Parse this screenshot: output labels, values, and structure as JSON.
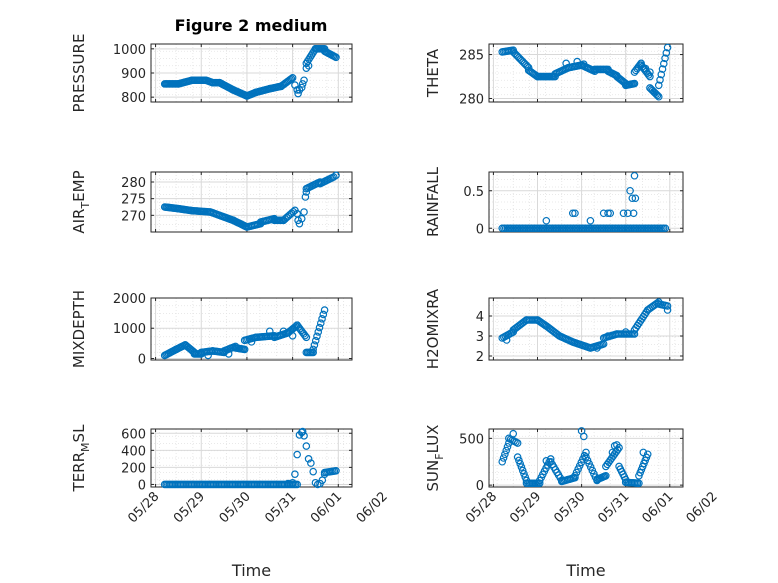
{
  "figure_title": "Figure 2 medium",
  "colors": {
    "marker": "#0072BD",
    "axis": "#262626",
    "grid": "#d9d9d9"
  },
  "chart_data": [
    {
      "type": "scatter",
      "ylabel": "PRESSURE",
      "ylim": [
        780,
        1020
      ],
      "yticks": [
        800,
        900,
        1000
      ],
      "ytick_labels": [
        "800",
        "900",
        "1000"
      ],
      "xlim": [
        -0.1,
        4.3
      ],
      "xticks": [
        0,
        1,
        2,
        3,
        4,
        5
      ],
      "xtick_labels": [],
      "segments": [
        {
          "x0": 0.2,
          "x1": 0.5,
          "y0": 855,
          "y1": 855,
          "n": 14
        },
        {
          "x0": 0.5,
          "x1": 0.8,
          "y0": 855,
          "y1": 870,
          "n": 12
        },
        {
          "x0": 0.8,
          "x1": 1.1,
          "y0": 870,
          "y1": 870,
          "n": 12
        },
        {
          "x0": 1.1,
          "x1": 1.25,
          "y0": 870,
          "y1": 860,
          "n": 6
        },
        {
          "x0": 1.25,
          "x1": 1.4,
          "y0": 860,
          "y1": 860,
          "n": 6
        },
        {
          "x0": 1.4,
          "x1": 1.7,
          "y0": 860,
          "y1": 830,
          "n": 12
        },
        {
          "x0": 1.7,
          "x1": 2.0,
          "y0": 830,
          "y1": 805,
          "n": 12
        },
        {
          "x0": 2.0,
          "x1": 2.2,
          "y0": 805,
          "y1": 820,
          "n": 8
        },
        {
          "x0": 2.2,
          "x1": 2.5,
          "y0": 820,
          "y1": 835,
          "n": 12
        },
        {
          "x0": 2.5,
          "x1": 2.75,
          "y0": 835,
          "y1": 845,
          "n": 10
        },
        {
          "x0": 2.75,
          "x1": 3.0,
          "y0": 845,
          "y1": 880,
          "n": 10
        },
        {
          "x0": 3.3,
          "x1": 3.5,
          "y0": 940,
          "y1": 1000,
          "n": 8
        },
        {
          "x0": 3.5,
          "x1": 3.7,
          "y0": 1000,
          "y1": 1000,
          "n": 8
        },
        {
          "x0": 3.7,
          "x1": 3.95,
          "y0": 990,
          "y1": 965,
          "n": 10
        }
      ],
      "points": [
        [
          3.05,
          850
        ],
        [
          3.1,
          830
        ],
        [
          3.12,
          815
        ],
        [
          3.15,
          830
        ],
        [
          3.2,
          840
        ],
        [
          3.22,
          855
        ],
        [
          3.25,
          870
        ],
        [
          3.3,
          920
        ],
        [
          3.35,
          930
        ]
      ]
    },
    {
      "type": "scatter",
      "ylabel": "THETA",
      "ylim": [
        279.6,
        286.2
      ],
      "yticks": [
        280,
        285
      ],
      "ytick_labels": [
        "280",
        "285"
      ],
      "xlim": [
        -0.1,
        4.3
      ],
      "xticks": [
        0,
        1,
        2,
        3,
        4,
        5
      ],
      "xtick_labels": [],
      "segments": [
        {
          "x0": 0.2,
          "x1": 0.45,
          "y0": 285.3,
          "y1": 285.5,
          "n": 8
        },
        {
          "x0": 0.45,
          "x1": 0.8,
          "y0": 285.3,
          "y1": 283.5,
          "n": 12
        },
        {
          "x0": 0.8,
          "x1": 1.0,
          "y0": 283.2,
          "y1": 282.5,
          "n": 8
        },
        {
          "x0": 1.0,
          "x1": 1.4,
          "y0": 282.5,
          "y1": 282.5,
          "n": 14
        },
        {
          "x0": 1.4,
          "x1": 1.7,
          "y0": 282.8,
          "y1": 283.5,
          "n": 10
        },
        {
          "x0": 1.7,
          "x1": 2.0,
          "y0": 283.5,
          "y1": 283.8,
          "n": 10
        },
        {
          "x0": 2.0,
          "x1": 2.3,
          "y0": 283.8,
          "y1": 283.1,
          "n": 10
        },
        {
          "x0": 2.3,
          "x1": 2.6,
          "y0": 283.3,
          "y1": 283.3,
          "n": 10
        },
        {
          "x0": 2.6,
          "x1": 2.8,
          "y0": 283.1,
          "y1": 282.6,
          "n": 8
        },
        {
          "x0": 2.8,
          "x1": 3.0,
          "y0": 282.5,
          "y1": 281.7,
          "n": 8
        },
        {
          "x0": 3.0,
          "x1": 3.2,
          "y0": 281.5,
          "y1": 281.7,
          "n": 8
        },
        {
          "x0": 3.2,
          "x1": 3.35,
          "y0": 283.0,
          "y1": 284.0,
          "n": 6
        },
        {
          "x0": 3.35,
          "x1": 3.55,
          "y0": 283.8,
          "y1": 282.5,
          "n": 8
        },
        {
          "x0": 3.55,
          "x1": 3.75,
          "y0": 281.2,
          "y1": 280.2,
          "n": 8
        },
        {
          "x0": 3.75,
          "x1": 3.95,
          "y0": 281.5,
          "y1": 285.8,
          "n": 8
        }
      ],
      "points": [
        [
          1.65,
          284.0
        ],
        [
          1.9,
          284.2
        ],
        [
          2.05,
          283.9
        ],
        [
          3.45,
          283.4
        ],
        [
          3.55,
          283.0
        ]
      ]
    },
    {
      "type": "scatter",
      "ylabel": "AIR_TEMP",
      "ylabel_parts": [
        "AIR",
        "T",
        "EMP"
      ],
      "ylim": [
        265,
        283
      ],
      "yticks": [
        270,
        275,
        280
      ],
      "ytick_labels": [
        "270",
        "275",
        "280"
      ],
      "xlim": [
        -0.1,
        4.3
      ],
      "xticks": [
        0,
        1,
        2,
        3,
        4,
        5
      ],
      "xtick_labels": [],
      "segments": [
        {
          "x0": 0.2,
          "x1": 0.5,
          "y0": 272.5,
          "y1": 272.0,
          "n": 12
        },
        {
          "x0": 0.5,
          "x1": 0.8,
          "y0": 272.0,
          "y1": 271.4,
          "n": 12
        },
        {
          "x0": 0.8,
          "x1": 1.2,
          "y0": 271.4,
          "y1": 271.0,
          "n": 14
        },
        {
          "x0": 1.2,
          "x1": 1.5,
          "y0": 271.0,
          "y1": 269.5,
          "n": 10
        },
        {
          "x0": 1.5,
          "x1": 1.7,
          "y0": 269.5,
          "y1": 268.5,
          "n": 8
        },
        {
          "x0": 1.7,
          "x1": 2.0,
          "y0": 268.5,
          "y1": 266.5,
          "n": 12
        },
        {
          "x0": 2.0,
          "x1": 2.3,
          "y0": 266.5,
          "y1": 267.5,
          "n": 10
        },
        {
          "x0": 2.3,
          "x1": 2.6,
          "y0": 268.0,
          "y1": 269.0,
          "n": 10
        },
        {
          "x0": 2.6,
          "x1": 2.8,
          "y0": 268.5,
          "y1": 268.5,
          "n": 8
        },
        {
          "x0": 2.8,
          "x1": 3.05,
          "y0": 268.5,
          "y1": 271.5,
          "n": 8
        },
        {
          "x0": 3.3,
          "x1": 3.6,
          "y0": 278.0,
          "y1": 280.0,
          "n": 10
        },
        {
          "x0": 3.6,
          "x1": 3.9,
          "y0": 279.5,
          "y1": 281.5,
          "n": 10
        }
      ],
      "points": [
        [
          3.1,
          270.5
        ],
        [
          3.12,
          268.5
        ],
        [
          3.15,
          267.5
        ],
        [
          3.2,
          269.0
        ],
        [
          3.25,
          271.0
        ],
        [
          3.28,
          275.5
        ],
        [
          3.3,
          277.0
        ],
        [
          3.95,
          282.0
        ]
      ]
    },
    {
      "type": "scatter",
      "ylabel": "RAINFALL",
      "ylim": [
        -0.05,
        0.75
      ],
      "yticks": [
        0,
        0.5
      ],
      "ytick_labels": [
        "0",
        "0.5"
      ],
      "xlim": [
        -0.1,
        4.3
      ],
      "xticks": [
        0,
        1,
        2,
        3,
        4,
        5
      ],
      "xtick_labels": [],
      "segments": [
        {
          "x0": 0.2,
          "x1": 3.9,
          "y0": 0,
          "y1": 0,
          "n": 95
        }
      ],
      "points": [
        [
          1.2,
          0.1
        ],
        [
          1.8,
          0.2
        ],
        [
          1.85,
          0.2
        ],
        [
          2.2,
          0.1
        ],
        [
          2.5,
          0.2
        ],
        [
          2.6,
          0.2
        ],
        [
          2.65,
          0.2
        ],
        [
          2.95,
          0.2
        ],
        [
          3.05,
          0.2
        ],
        [
          3.1,
          0.5
        ],
        [
          3.15,
          0.4
        ],
        [
          3.18,
          0.2
        ],
        [
          3.2,
          0.7
        ],
        [
          3.22,
          0.4
        ]
      ]
    },
    {
      "type": "scatter",
      "ylabel": "MIXDEPTH",
      "ylim": [
        -50,
        2000
      ],
      "yticks": [
        0,
        1000,
        2000
      ],
      "ytick_labels": [
        "0",
        "1000",
        "2000"
      ],
      "xlim": [
        -0.1,
        4.3
      ],
      "xticks": [
        0,
        1,
        2,
        3,
        4,
        5
      ],
      "xtick_labels": [],
      "segments": [
        {
          "x0": 0.2,
          "x1": 0.45,
          "y0": 100,
          "y1": 300,
          "n": 10
        },
        {
          "x0": 0.45,
          "x1": 0.65,
          "y0": 300,
          "y1": 450,
          "n": 8
        },
        {
          "x0": 0.65,
          "x1": 0.85,
          "y0": 450,
          "y1": 200,
          "n": 8
        },
        {
          "x0": 0.85,
          "x1": 1.0,
          "y0": 150,
          "y1": 150,
          "n": 6
        },
        {
          "x0": 1.0,
          "x1": 1.25,
          "y0": 200,
          "y1": 250,
          "n": 8
        },
        {
          "x0": 1.25,
          "x1": 1.5,
          "y0": 250,
          "y1": 200,
          "n": 8
        },
        {
          "x0": 1.5,
          "x1": 1.75,
          "y0": 250,
          "y1": 400,
          "n": 8
        },
        {
          "x0": 1.75,
          "x1": 1.95,
          "y0": 350,
          "y1": 300,
          "n": 8
        },
        {
          "x0": 1.95,
          "x1": 2.2,
          "y0": 600,
          "y1": 700,
          "n": 8
        },
        {
          "x0": 2.2,
          "x1": 2.6,
          "y0": 700,
          "y1": 750,
          "n": 12
        },
        {
          "x0": 2.6,
          "x1": 2.9,
          "y0": 700,
          "y1": 850,
          "n": 10
        },
        {
          "x0": 2.9,
          "x1": 3.1,
          "y0": 850,
          "y1": 1100,
          "n": 8
        },
        {
          "x0": 3.1,
          "x1": 3.3,
          "y0": 1100,
          "y1": 700,
          "n": 8
        },
        {
          "x0": 3.3,
          "x1": 3.45,
          "y0": 200,
          "y1": 200,
          "n": 6
        },
        {
          "x0": 3.45,
          "x1": 3.7,
          "y0": 300,
          "y1": 1600,
          "n": 10
        }
      ],
      "points": [
        [
          1.15,
          100
        ],
        [
          1.6,
          150
        ],
        [
          2.1,
          550
        ],
        [
          2.5,
          900
        ],
        [
          2.8,
          900
        ],
        [
          3.0,
          750
        ]
      ]
    },
    {
      "type": "scatter",
      "ylabel": "H2OMIXRA",
      "ylim": [
        1.8,
        4.9
      ],
      "yticks": [
        2,
        3,
        4
      ],
      "ytick_labels": [
        "2",
        "3",
        "4"
      ],
      "xlim": [
        -0.1,
        4.3
      ],
      "xticks": [
        0,
        1,
        2,
        3,
        4,
        5
      ],
      "xtick_labels": [],
      "segments": [
        {
          "x0": 0.2,
          "x1": 0.45,
          "y0": 2.9,
          "y1": 3.2,
          "n": 8
        },
        {
          "x0": 0.45,
          "x1": 0.75,
          "y0": 3.3,
          "y1": 3.8,
          "n": 10
        },
        {
          "x0": 0.75,
          "x1": 1.0,
          "y0": 3.8,
          "y1": 3.8,
          "n": 8
        },
        {
          "x0": 1.0,
          "x1": 1.2,
          "y0": 3.8,
          "y1": 3.5,
          "n": 8
        },
        {
          "x0": 1.2,
          "x1": 1.5,
          "y0": 3.5,
          "y1": 3.0,
          "n": 10
        },
        {
          "x0": 1.5,
          "x1": 1.8,
          "y0": 3.0,
          "y1": 2.7,
          "n": 10
        },
        {
          "x0": 1.8,
          "x1": 2.2,
          "y0": 2.7,
          "y1": 2.4,
          "n": 12
        },
        {
          "x0": 2.2,
          "x1": 2.5,
          "y0": 2.4,
          "y1": 2.6,
          "n": 10
        },
        {
          "x0": 2.5,
          "x1": 2.8,
          "y0": 2.9,
          "y1": 3.1,
          "n": 10
        },
        {
          "x0": 2.8,
          "x1": 3.2,
          "y0": 3.1,
          "y1": 3.1,
          "n": 12
        },
        {
          "x0": 3.2,
          "x1": 3.5,
          "y0": 3.3,
          "y1": 4.3,
          "n": 10
        },
        {
          "x0": 3.5,
          "x1": 3.75,
          "y0": 4.3,
          "y1": 4.7,
          "n": 8
        },
        {
          "x0": 3.75,
          "x1": 3.95,
          "y0": 4.6,
          "y1": 4.5,
          "n": 6
        }
      ],
      "points": [
        [
          0.3,
          2.8
        ],
        [
          2.35,
          2.4
        ],
        [
          2.6,
          3.0
        ],
        [
          3.0,
          3.2
        ],
        [
          3.95,
          4.3
        ]
      ]
    },
    {
      "type": "scatter",
      "ylabel": "TERR_MSL",
      "ylabel_parts": [
        "TERR",
        "M",
        "SL"
      ],
      "ylim": [
        -30,
        650
      ],
      "yticks": [
        0,
        200,
        400,
        600
      ],
      "ytick_labels": [
        "0",
        "200",
        "400",
        "600"
      ],
      "xlim": [
        -0.1,
        4.3
      ],
      "xticks": [
        0,
        1,
        2,
        3,
        4,
        5
      ],
      "xtick_labels": [
        "05/28",
        "05/29",
        "05/30",
        "05/31",
        "06/01",
        "06/02"
      ],
      "xlabel": "Time",
      "segments": [
        {
          "x0": 0.2,
          "x1": 3.1,
          "y0": 0,
          "y1": 0,
          "n": 85
        },
        {
          "x0": 3.7,
          "x1": 3.95,
          "y0": 140,
          "y1": 160,
          "n": 8
        }
      ],
      "points": [
        [
          2.9,
          10
        ],
        [
          3.0,
          20
        ],
        [
          3.05,
          120
        ],
        [
          3.1,
          350
        ],
        [
          3.15,
          580
        ],
        [
          3.2,
          610
        ],
        [
          3.22,
          620
        ],
        [
          3.25,
          570
        ],
        [
          3.3,
          450
        ],
        [
          3.35,
          300
        ],
        [
          3.4,
          250
        ],
        [
          3.45,
          150
        ],
        [
          3.5,
          20
        ],
        [
          3.55,
          0
        ],
        [
          3.6,
          10
        ],
        [
          3.65,
          50
        ],
        [
          3.7,
          120
        ]
      ]
    },
    {
      "type": "scatter",
      "ylabel": "SUN_FLUX",
      "ylabel_parts": [
        "SUN",
        "F",
        "LUX"
      ],
      "ylim": [
        -20,
        600
      ],
      "yticks": [
        0,
        500
      ],
      "ytick_labels": [
        "0",
        "500"
      ],
      "xlim": [
        -0.1,
        4.3
      ],
      "xticks": [
        0,
        1,
        2,
        3,
        4,
        5
      ],
      "xtick_labels": [
        "05/28",
        "05/29",
        "05/30",
        "05/31",
        "06/01",
        "06/02"
      ],
      "xlabel": "Time",
      "segments": [
        {
          "x0": 0.2,
          "x1": 0.35,
          "y0": 250,
          "y1": 450,
          "n": 6
        },
        {
          "x0": 0.35,
          "x1": 0.55,
          "y0": 500,
          "y1": 450,
          "n": 6
        },
        {
          "x0": 0.55,
          "x1": 0.75,
          "y0": 300,
          "y1": 50,
          "n": 8
        },
        {
          "x0": 0.75,
          "x1": 1.05,
          "y0": 20,
          "y1": 20,
          "n": 10
        },
        {
          "x0": 1.05,
          "x1": 1.3,
          "y0": 50,
          "y1": 280,
          "n": 8
        },
        {
          "x0": 1.3,
          "x1": 1.55,
          "y0": 250,
          "y1": 50,
          "n": 8
        },
        {
          "x0": 1.55,
          "x1": 1.85,
          "y0": 40,
          "y1": 80,
          "n": 10
        },
        {
          "x0": 1.85,
          "x1": 2.1,
          "y0": 100,
          "y1": 350,
          "n": 8
        },
        {
          "x0": 2.1,
          "x1": 2.35,
          "y0": 300,
          "y1": 50,
          "n": 8
        },
        {
          "x0": 2.35,
          "x1": 2.55,
          "y0": 60,
          "y1": 100,
          "n": 8
        },
        {
          "x0": 2.55,
          "x1": 2.85,
          "y0": 200,
          "y1": 400,
          "n": 10
        },
        {
          "x0": 2.85,
          "x1": 3.0,
          "y0": 200,
          "y1": 60,
          "n": 6
        },
        {
          "x0": 3.0,
          "x1": 3.3,
          "y0": 30,
          "y1": 20,
          "n": 10
        },
        {
          "x0": 3.3,
          "x1": 3.5,
          "y0": 100,
          "y1": 330,
          "n": 8
        }
      ],
      "points": [
        [
          0.45,
          550
        ],
        [
          1.2,
          260
        ],
        [
          2.0,
          580
        ],
        [
          2.05,
          520
        ],
        [
          2.7,
          350
        ],
        [
          2.75,
          420
        ],
        [
          2.8,
          430
        ],
        [
          3.4,
          350
        ]
      ]
    }
  ]
}
